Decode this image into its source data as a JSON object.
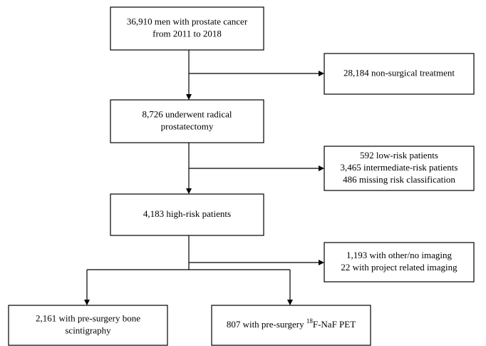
{
  "nodes": [
    {
      "lines": [
        "36,910 men with prostate cancer",
        "from 2011 to 2018"
      ]
    },
    {
      "lines": [
        "28,184 non-surgical treatment"
      ]
    },
    {
      "lines": [
        "8,726 underwent radical",
        "prostatectomy"
      ]
    },
    {
      "lines": [
        "592 low-risk patients",
        "3,465 intermediate-risk patients",
        "486 missing risk classification"
      ]
    },
    {
      "lines": [
        "4,183 high-risk patients"
      ]
    },
    {
      "lines": [
        "1,193 with other/no imaging",
        "22 with project related imaging"
      ]
    },
    {
      "lines": [
        "2,161 with pre-surgery bone",
        "scintigraphy"
      ]
    },
    {
      "text_before": "807 with pre-surgery ",
      "superscript": "18",
      "text_after": "F-NaF PET"
    }
  ]
}
